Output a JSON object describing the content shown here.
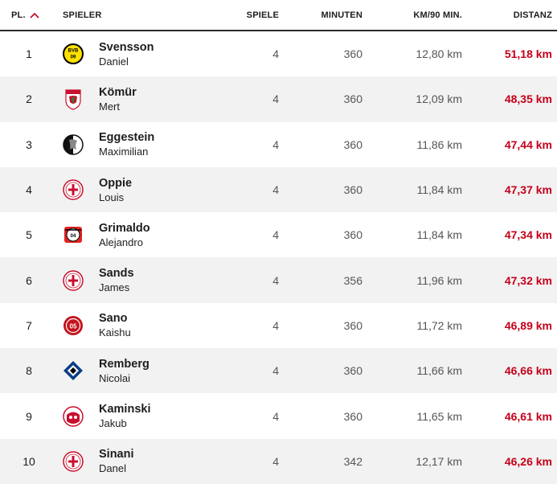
{
  "colors": {
    "accent": "#c4001a",
    "stripe": "#f2f2f2"
  },
  "header": {
    "rank": "PL.",
    "player": "SPIELER",
    "games": "SPIELE",
    "minutes": "MINUTEN",
    "kmh": "KM/90 MIN.",
    "distance": "DISTANZ"
  },
  "rows": [
    {
      "rank": "1",
      "last": "Svensson",
      "first": "Daniel",
      "club_icon": "bvb-crest-icon",
      "games": "4",
      "minutes": "360",
      "kmh": "12,80 km",
      "distance": "51,18 km"
    },
    {
      "rank": "2",
      "last": "Kömür",
      "first": "Mert",
      "club_icon": "augsburg-crest-icon",
      "games": "4",
      "minutes": "360",
      "kmh": "12,09 km",
      "distance": "48,35 km"
    },
    {
      "rank": "3",
      "last": "Eggestein",
      "first": "Maximilian",
      "club_icon": "freiburg-crest-icon",
      "games": "4",
      "minutes": "360",
      "kmh": "11,86 km",
      "distance": "47,44 km"
    },
    {
      "rank": "4",
      "last": "Oppie",
      "first": "Louis",
      "club_icon": "st-pauli-crest-icon",
      "games": "4",
      "minutes": "360",
      "kmh": "11,84 km",
      "distance": "47,37 km"
    },
    {
      "rank": "5",
      "last": "Grimaldo",
      "first": "Alejandro",
      "club_icon": "leverkusen-crest-icon",
      "games": "4",
      "minutes": "360",
      "kmh": "11,84 km",
      "distance": "47,34 km"
    },
    {
      "rank": "6",
      "last": "Sands",
      "first": "James",
      "club_icon": "st-pauli-crest-icon",
      "games": "4",
      "minutes": "356",
      "kmh": "11,96 km",
      "distance": "47,32 km"
    },
    {
      "rank": "7",
      "last": "Sano",
      "first": "Kaishu",
      "club_icon": "mainz-crest-icon",
      "games": "4",
      "minutes": "360",
      "kmh": "11,72 km",
      "distance": "46,89 km"
    },
    {
      "rank": "8",
      "last": "Remberg",
      "first": "Nicolai",
      "club_icon": "hamburg-crest-icon",
      "games": "4",
      "minutes": "360",
      "kmh": "11,66 km",
      "distance": "46,66 km"
    },
    {
      "rank": "9",
      "last": "Kaminski",
      "first": "Jakub",
      "club_icon": "koeln-crest-icon",
      "games": "4",
      "minutes": "360",
      "kmh": "11,65 km",
      "distance": "46,61 km"
    },
    {
      "rank": "10",
      "last": "Sinani",
      "first": "Danel",
      "club_icon": "st-pauli-crest-icon",
      "games": "4",
      "minutes": "342",
      "kmh": "12,17 km",
      "distance": "46,26 km"
    }
  ]
}
